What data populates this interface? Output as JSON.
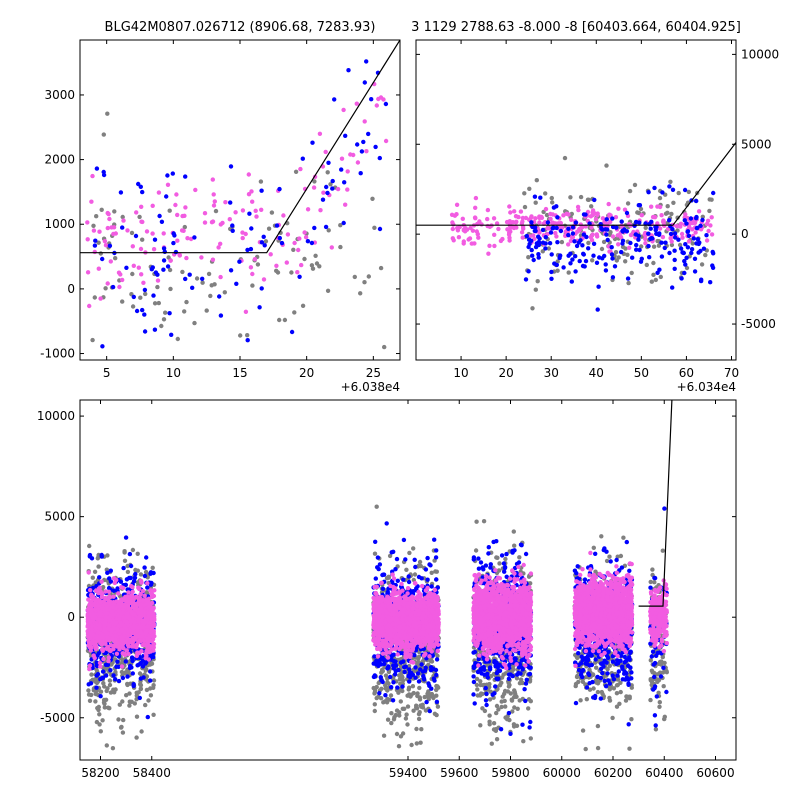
{
  "chart_data": [
    {
      "type": "scatter",
      "title": "BLG42M0807.026712 (8906.68, 7283.93)",
      "xlim": [
        3.0,
        27.0
      ],
      "ylim": [
        -1100,
        3850
      ],
      "xticks": [
        5,
        10,
        15,
        20,
        25
      ],
      "yticks": [
        -1000,
        0,
        1000,
        2000,
        3000
      ],
      "offset_label": "+6.038e4",
      "yaxis_side": "left",
      "model_line": {
        "x": [
          3.0,
          17.0,
          27.0
        ],
        "y": [
          560,
          560,
          3850
        ]
      },
      "point_clusters": [
        {
          "color": "#808080",
          "n": 110,
          "x0": 3.5,
          "x1": 26.0,
          "ymean": 400,
          "ysd": 650,
          "seed": 11
        },
        {
          "color": "#f25ce1",
          "n": 150,
          "x0": 3.5,
          "x1": 26.0,
          "ymean": 800,
          "ysd": 500,
          "seed": 12,
          "trend": 0.8
        },
        {
          "color": "#0000ff",
          "n": 110,
          "x0": 4.0,
          "x1": 26.0,
          "ymean": 600,
          "ysd": 700,
          "seed": 13,
          "trend": 0.9
        }
      ]
    },
    {
      "type": "scatter",
      "title": "3 1129 2788.63 -8.000 -8 [60403.664, 60404.925]",
      "xlim": [
        0.0,
        71.0
      ],
      "ylim": [
        -7000,
        10800
      ],
      "xticks": [
        10,
        20,
        30,
        40,
        50,
        60,
        70
      ],
      "yticks": [
        -5000,
        0,
        5000,
        10000
      ],
      "offset_label": "+6.034e4",
      "yaxis_side": "right",
      "model_line": {
        "x": [
          0.0,
          57.0,
          71.0
        ],
        "y": [
          500,
          500,
          5100
        ]
      },
      "point_clusters": [
        {
          "color": "#808080",
          "n": 180,
          "x0": 24.0,
          "x1": 66.0,
          "ymean": 200,
          "ysd": 1400,
          "seed": 21
        },
        {
          "color": "#f25ce1",
          "n": 300,
          "x0": 8.0,
          "x1": 66.0,
          "ymean": 400,
          "ysd": 500,
          "seed": 22
        },
        {
          "color": "#0000ff",
          "n": 220,
          "x0": 24.0,
          "x1": 66.0,
          "ymean": -200,
          "ysd": 1100,
          "seed": 23
        }
      ]
    },
    {
      "type": "scatter",
      "title": "",
      "xlim": [
        58120,
        60680
      ],
      "ylim": [
        -7100,
        10800
      ],
      "xticks": [
        58200,
        58400,
        59400,
        59600,
        59800,
        60000,
        60200,
        60400,
        60600
      ],
      "yticks": [
        -5000,
        0,
        5000,
        10000
      ],
      "offset_label": "",
      "yaxis_side": "left",
      "model_line": {
        "x": [
          60300,
          60395,
          60400,
          60430
        ],
        "y": [
          550,
          550,
          2000,
          10800
        ]
      },
      "point_clusters": [
        {
          "color": "#808080",
          "n": 500,
          "x0": 58150,
          "x1": 58410,
          "ymean": -1200,
          "ysd": 2000,
          "seed": 31
        },
        {
          "color": "#0000ff",
          "n": 450,
          "x0": 58150,
          "x1": 58410,
          "ymean": -500,
          "ysd": 1500,
          "seed": 32
        },
        {
          "color": "#f25ce1",
          "n": 1400,
          "x0": 58150,
          "x1": 58410,
          "ymean": -300,
          "ysd": 700,
          "seed": 33
        },
        {
          "color": "#808080",
          "n": 550,
          "x0": 59265,
          "x1": 59520,
          "ymean": -1500,
          "ysd": 2000,
          "seed": 34
        },
        {
          "color": "#0000ff",
          "n": 500,
          "x0": 59265,
          "x1": 59520,
          "ymean": -500,
          "ysd": 1600,
          "seed": 35
        },
        {
          "color": "#f25ce1",
          "n": 1500,
          "x0": 59265,
          "x1": 59520,
          "ymean": -200,
          "ysd": 700,
          "seed": 36
        },
        {
          "color": "#808080",
          "n": 500,
          "x0": 59655,
          "x1": 59880,
          "ymean": -1300,
          "ysd": 2000,
          "seed": 37
        },
        {
          "color": "#0000ff",
          "n": 550,
          "x0": 59655,
          "x1": 59880,
          "ymean": -400,
          "ysd": 1700,
          "seed": 38
        },
        {
          "color": "#f25ce1",
          "n": 1500,
          "x0": 59655,
          "x1": 59880,
          "ymean": 0,
          "ysd": 800,
          "seed": 39
        },
        {
          "color": "#808080",
          "n": 450,
          "x0": 60050,
          "x1": 60275,
          "ymean": -1200,
          "ysd": 1800,
          "seed": 40
        },
        {
          "color": "#0000ff",
          "n": 500,
          "x0": 60050,
          "x1": 60275,
          "ymean": -500,
          "ysd": 1500,
          "seed": 41
        },
        {
          "color": "#f25ce1",
          "n": 1500,
          "x0": 60050,
          "x1": 60275,
          "ymean": 200,
          "ysd": 800,
          "seed": 42
        },
        {
          "color": "#808080",
          "n": 120,
          "x0": 60345,
          "x1": 60410,
          "ymean": -1500,
          "ysd": 1800,
          "seed": 43
        },
        {
          "color": "#0000ff",
          "n": 60,
          "x0": 60345,
          "x1": 60410,
          "ymean": -800,
          "ysd": 1800,
          "seed": 44
        },
        {
          "color": "#f25ce1",
          "n": 220,
          "x0": 60345,
          "x1": 60410,
          "ymean": 0,
          "ysd": 700,
          "seed": 45
        }
      ]
    }
  ]
}
